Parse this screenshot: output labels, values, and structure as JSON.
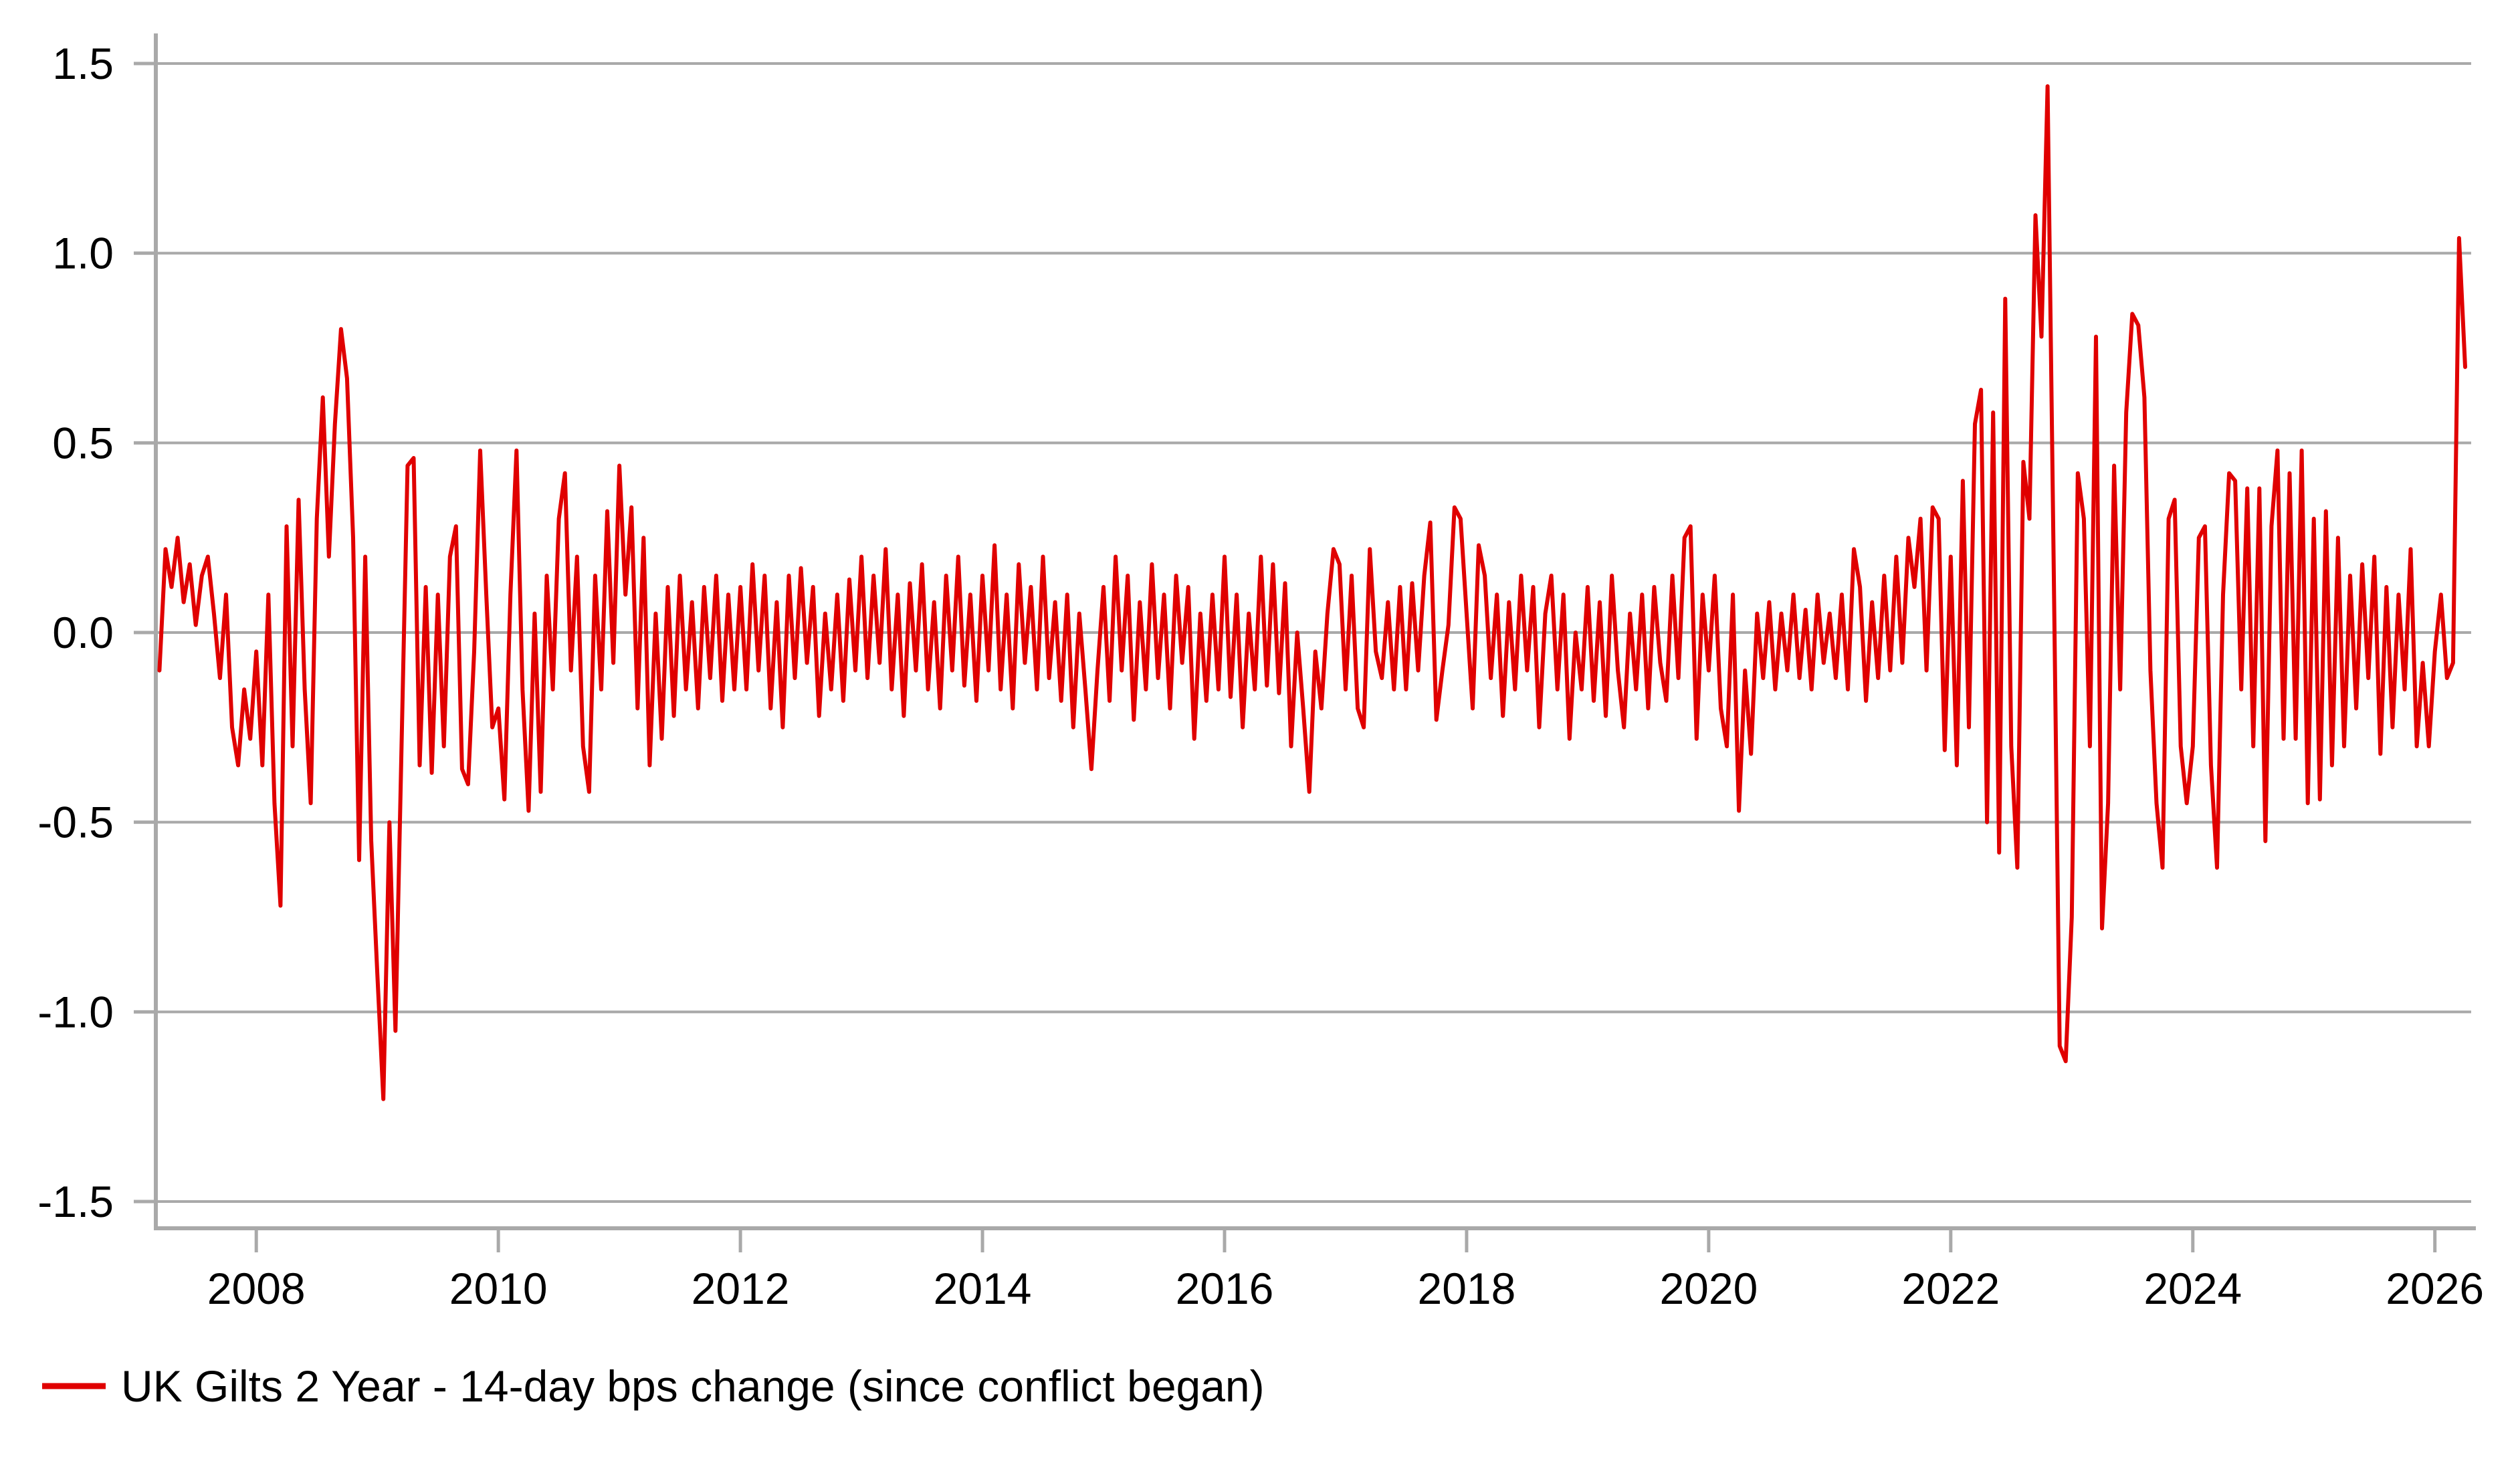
{
  "chart_data": {
    "type": "line",
    "title": "",
    "xlabel": "",
    "ylabel": "",
    "xlim": [
      2007.17,
      2026.3
    ],
    "ylim": [
      -1.5,
      1.5
    ],
    "grid": "horizontal-only",
    "legend_position": "bottom-left",
    "x_ticks": [
      2008,
      2010,
      2012,
      2014,
      2016,
      2018,
      2020,
      2022,
      2024,
      2026
    ],
    "y_ticks": [
      1.5,
      1.0,
      0.5,
      0.0,
      -0.5,
      -1.0,
      -1.5
    ],
    "y_tick_labels": [
      "1.5",
      "1.0",
      "0.5",
      "0.0",
      "-0.5",
      "-1.0",
      "-1.5"
    ],
    "series": [
      {
        "name": "UK Gilts 2 Year - 14-day bps change (since conflict began)",
        "color": "#e00000",
        "x_start": 2007.2,
        "x_step": 0.05,
        "values": [
          -0.1,
          0.22,
          0.12,
          0.25,
          0.08,
          0.18,
          0.02,
          0.15,
          0.2,
          0.05,
          -0.12,
          0.1,
          -0.25,
          -0.35,
          -0.15,
          -0.28,
          -0.05,
          -0.35,
          0.1,
          -0.45,
          -0.72,
          0.28,
          -0.3,
          0.35,
          -0.15,
          -0.45,
          0.3,
          0.62,
          0.2,
          0.55,
          0.8,
          0.67,
          0.25,
          -0.6,
          0.2,
          -0.55,
          -0.9,
          -1.23,
          -0.5,
          -1.05,
          -0.3,
          0.44,
          0.46,
          -0.35,
          0.12,
          -0.37,
          0.1,
          -0.3,
          0.2,
          0.28,
          -0.36,
          -0.4,
          -0.05,
          0.48,
          0.1,
          -0.25,
          -0.2,
          -0.44,
          0.1,
          0.48,
          -0.15,
          -0.47,
          0.05,
          -0.42,
          0.15,
          -0.15,
          0.3,
          0.42,
          -0.1,
          0.2,
          -0.3,
          -0.42,
          0.15,
          -0.15,
          0.32,
          -0.08,
          0.44,
          0.1,
          0.33,
          -0.2,
          0.25,
          -0.35,
          0.05,
          -0.28,
          0.12,
          -0.22,
          0.15,
          -0.15,
          0.08,
          -0.2,
          0.12,
          -0.12,
          0.15,
          -0.18,
          0.1,
          -0.15,
          0.12,
          -0.15,
          0.18,
          -0.1,
          0.15,
          -0.2,
          0.08,
          -0.25,
          0.15,
          -0.12,
          0.17,
          -0.08,
          0.12,
          -0.22,
          0.05,
          -0.15,
          0.1,
          -0.18,
          0.14,
          -0.1,
          0.2,
          -0.12,
          0.15,
          -0.08,
          0.22,
          -0.15,
          0.1,
          -0.22,
          0.13,
          -0.1,
          0.18,
          -0.15,
          0.08,
          -0.2,
          0.15,
          -0.1,
          0.2,
          -0.14,
          0.1,
          -0.18,
          0.15,
          -0.1,
          0.23,
          -0.15,
          0.1,
          -0.2,
          0.18,
          -0.08,
          0.12,
          -0.15,
          0.2,
          -0.12,
          0.08,
          -0.18,
          0.1,
          -0.25,
          0.05,
          -0.15,
          -0.36,
          -0.1,
          0.12,
          -0.18,
          0.2,
          -0.1,
          0.15,
          -0.23,
          0.08,
          -0.15,
          0.18,
          -0.12,
          0.1,
          -0.2,
          0.15,
          -0.08,
          0.12,
          -0.28,
          0.05,
          -0.18,
          0.1,
          -0.15,
          0.2,
          -0.17,
          0.1,
          -0.25,
          0.05,
          -0.15,
          0.2,
          -0.14,
          0.18,
          -0.16,
          0.13,
          -0.3,
          0.0,
          -0.2,
          -0.42,
          -0.05,
          -0.2,
          0.05,
          0.22,
          0.18,
          -0.15,
          0.15,
          -0.2,
          -0.25,
          0.22,
          -0.05,
          -0.12,
          0.08,
          -0.15,
          0.12,
          -0.15,
          0.13,
          -0.1,
          0.15,
          0.29,
          -0.23,
          -0.1,
          0.02,
          0.33,
          0.3,
          0.05,
          -0.2,
          0.23,
          0.15,
          -0.12,
          0.1,
          -0.22,
          0.08,
          -0.15,
          0.15,
          -0.1,
          0.12,
          -0.25,
          0.05,
          0.15,
          -0.15,
          0.1,
          -0.28,
          0.0,
          -0.15,
          0.12,
          -0.18,
          0.08,
          -0.22,
          0.15,
          -0.1,
          -0.25,
          0.05,
          -0.15,
          0.1,
          -0.2,
          0.12,
          -0.08,
          -0.18,
          0.15,
          -0.12,
          0.25,
          0.28,
          -0.28,
          0.1,
          -0.1,
          0.15,
          -0.2,
          -0.3,
          0.1,
          -0.47,
          -0.1,
          -0.32,
          0.05,
          -0.12,
          0.08,
          -0.15,
          0.05,
          -0.1,
          0.1,
          -0.12,
          0.06,
          -0.15,
          0.1,
          -0.08,
          0.05,
          -0.12,
          0.1,
          -0.15,
          0.22,
          0.12,
          -0.18,
          0.08,
          -0.12,
          0.15,
          -0.1,
          0.2,
          -0.08,
          0.25,
          0.12,
          0.3,
          -0.1,
          0.33,
          0.3,
          -0.31,
          0.2,
          -0.35,
          0.4,
          -0.25,
          0.55,
          0.64,
          -0.5,
          0.58,
          -0.58,
          0.88,
          -0.3,
          -0.62,
          0.45,
          0.3,
          1.1,
          0.78,
          1.44,
          0.2,
          -1.09,
          -1.13,
          -0.75,
          0.42,
          0.3,
          -0.3,
          0.78,
          -0.78,
          -0.45,
          0.44,
          -0.15,
          0.58,
          0.84,
          0.81,
          0.62,
          -0.1,
          -0.45,
          -0.62,
          0.3,
          0.35,
          -0.3,
          -0.45,
          -0.3,
          0.25,
          0.28,
          -0.35,
          -0.62,
          0.1,
          0.42,
          0.4,
          -0.15,
          0.38,
          -0.3,
          0.38,
          -0.55,
          0.28,
          0.48,
          -0.28,
          0.42,
          -0.28,
          0.48,
          -0.45,
          0.3,
          -0.44,
          0.32,
          -0.35,
          0.25,
          -0.3,
          0.15,
          -0.2,
          0.18,
          -0.12,
          0.2,
          -0.32,
          0.12,
          -0.25,
          0.1,
          -0.15,
          0.22,
          -0.3,
          -0.08,
          -0.3,
          -0.05,
          0.1,
          -0.12,
          -0.08,
          1.04,
          0.7
        ]
      }
    ]
  },
  "legend": {
    "label": "UK Gilts 2 Year - 14-day bps change (since conflict began)",
    "swatch_color": "#e00000"
  },
  "colors": {
    "line": "#e00000",
    "grid": "#a9a9a9",
    "axis": "#a9a9a9",
    "text": "#000000",
    "background": "#ffffff"
  }
}
